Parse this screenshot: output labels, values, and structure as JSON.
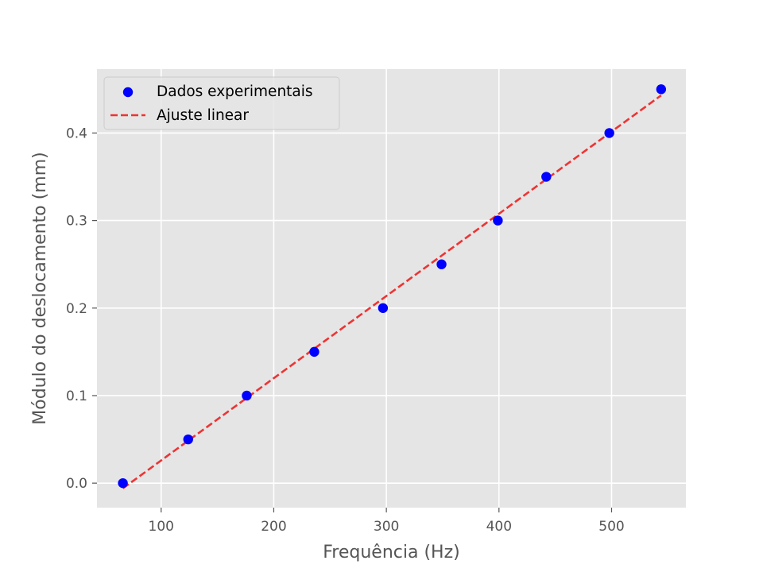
{
  "chart_data": {
    "type": "scatter",
    "title": "",
    "xlabel": "Frequência (Hz)",
    "ylabel": "Módulo do deslocamento (mm)",
    "xlim": [
      43,
      566
    ],
    "ylim": [
      -0.028,
      0.473
    ],
    "xticks": [
      100,
      200,
      300,
      400,
      500
    ],
    "yticks": [
      0.0,
      0.1,
      0.2,
      0.3,
      0.4
    ],
    "xtick_labels": [
      "100",
      "200",
      "300",
      "400",
      "500"
    ],
    "ytick_labels": [
      "0.0",
      "0.1",
      "0.2",
      "0.3",
      "0.4"
    ],
    "grid": true,
    "legend_position": "top-left",
    "series": [
      {
        "name": "Dados experimentais",
        "kind": "scatter",
        "color": "#0000ff",
        "x": [
          66,
          124,
          176,
          236,
          297,
          349,
          399,
          442,
          498,
          544
        ],
        "y": [
          0.0,
          0.05,
          0.1,
          0.15,
          0.2,
          0.25,
          0.3,
          0.35,
          0.4,
          0.45
        ]
      },
      {
        "name": "Ajuste linear",
        "kind": "line",
        "style": "dashed",
        "color": "#ee3333",
        "x": [
          66,
          544
        ],
        "y": [
          -0.006,
          0.443
        ]
      }
    ]
  },
  "colors": {
    "plot_background": "#e5e5e5",
    "grid": "#ffffff",
    "tick_text": "#555555"
  }
}
